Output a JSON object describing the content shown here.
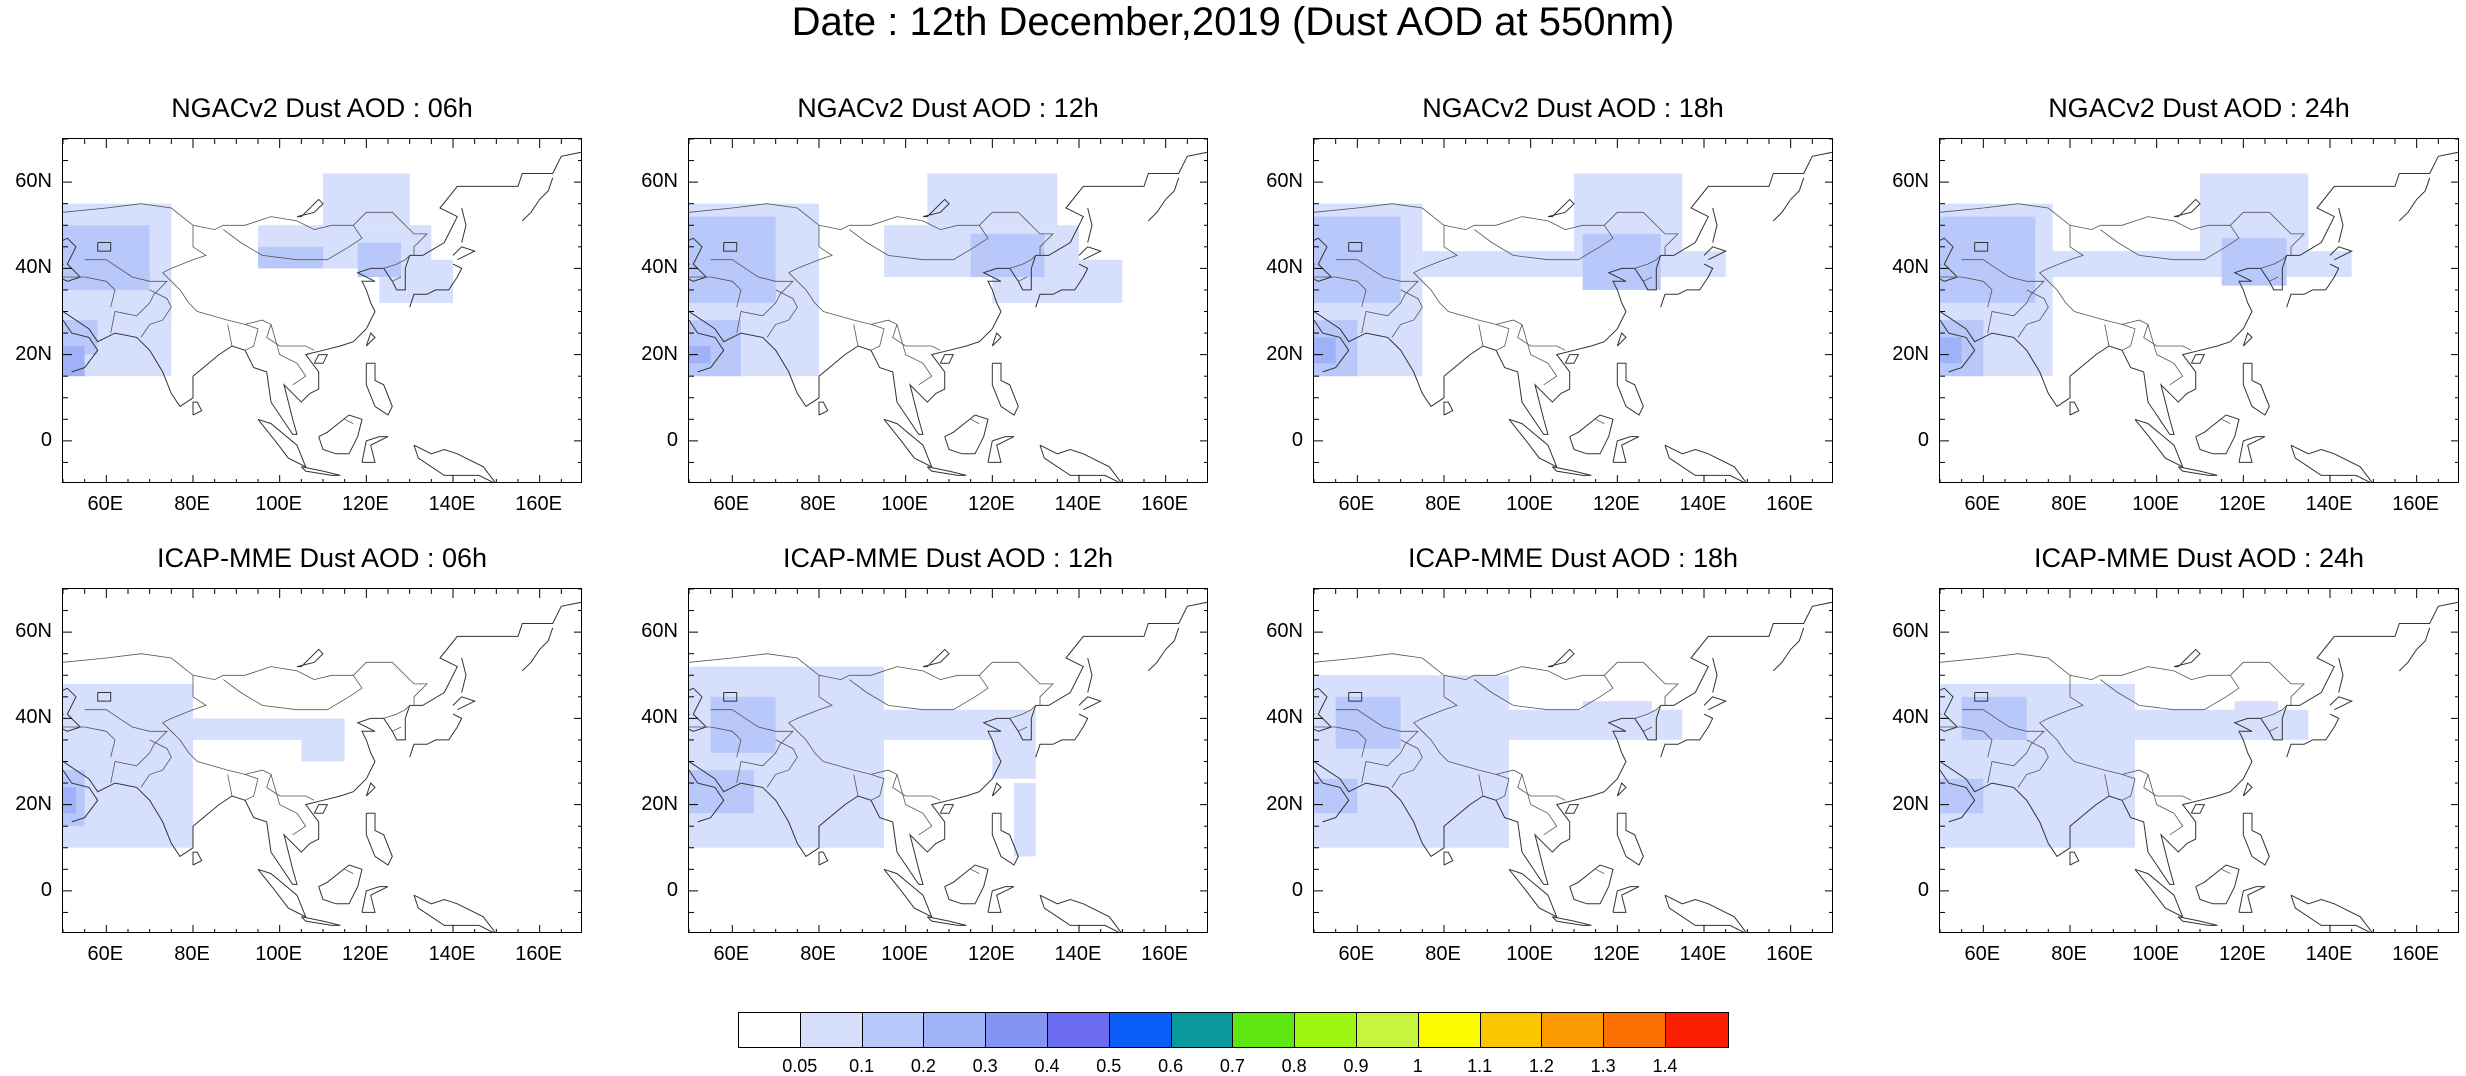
{
  "title": "Date : 12th December,2019 (Dust AOD at 550nm)",
  "panels": [
    {
      "title": "NGACv2 Dust AOD : 06h"
    },
    {
      "title": "NGACv2 Dust AOD : 12h"
    },
    {
      "title": "NGACv2 Dust AOD : 18h"
    },
    {
      "title": "NGACv2 Dust AOD : 24h"
    },
    {
      "title": "ICAP-MME Dust AOD : 06h"
    },
    {
      "title": "ICAP-MME Dust AOD : 12h"
    },
    {
      "title": "ICAP-MME Dust AOD : 18h"
    },
    {
      "title": "ICAP-MME Dust AOD : 24h"
    }
  ],
  "map": {
    "lon_range": [
      50,
      170
    ],
    "lat_range": [
      -10,
      70
    ],
    "x_ticks": [
      "60E",
      "80E",
      "100E",
      "120E",
      "140E",
      "160E"
    ],
    "y_ticks": [
      "60N",
      "40N",
      "20N",
      "0"
    ]
  },
  "colorbar": {
    "labels": [
      "0.05",
      "0.1",
      "0.2",
      "0.3",
      "0.4",
      "0.5",
      "0.6",
      "0.7",
      "0.8",
      "0.9",
      "1",
      "1.1",
      "1.2",
      "1.3",
      "1.4"
    ],
    "colors": [
      "#ffffff",
      "#d6e0fc",
      "#b9c8fa",
      "#9fb2f7",
      "#8494f3",
      "#6c6cf0",
      "#0a5cf6",
      "#0a9a9c",
      "#5ee613",
      "#9df713",
      "#c6f53f",
      "#fbfb00",
      "#fbc500",
      "#fb9a00",
      "#fb6e00",
      "#fb1e00"
    ]
  }
}
